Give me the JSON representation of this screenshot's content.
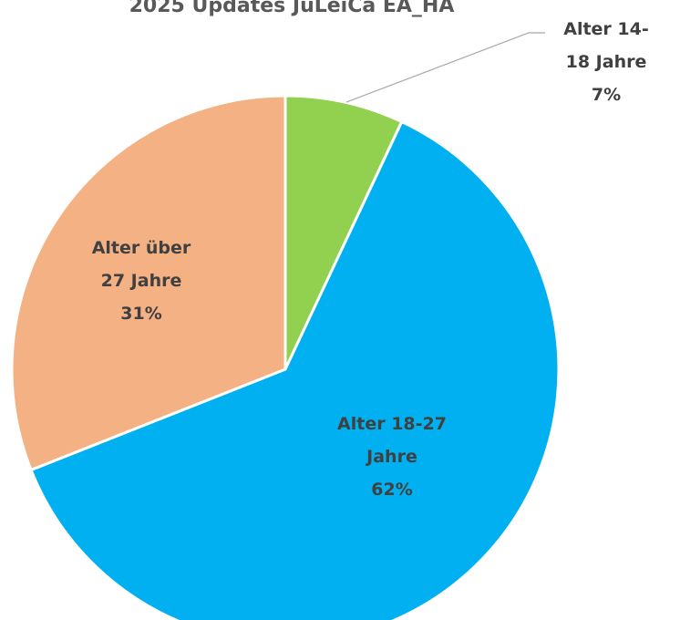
{
  "chart_data": {
    "type": "pie",
    "title": "2025 Updates JuLeiCa EA_HA",
    "categories": [
      "Alter 14-18 Jahre",
      "Alter 18-27 Jahre",
      "Alter über 27 Jahre"
    ],
    "values": [
      7,
      62,
      31
    ],
    "value_labels": [
      "7%",
      "62%",
      "31%"
    ],
    "colors": [
      "#92d050",
      "#00b0f0",
      "#f4b183"
    ]
  }
}
